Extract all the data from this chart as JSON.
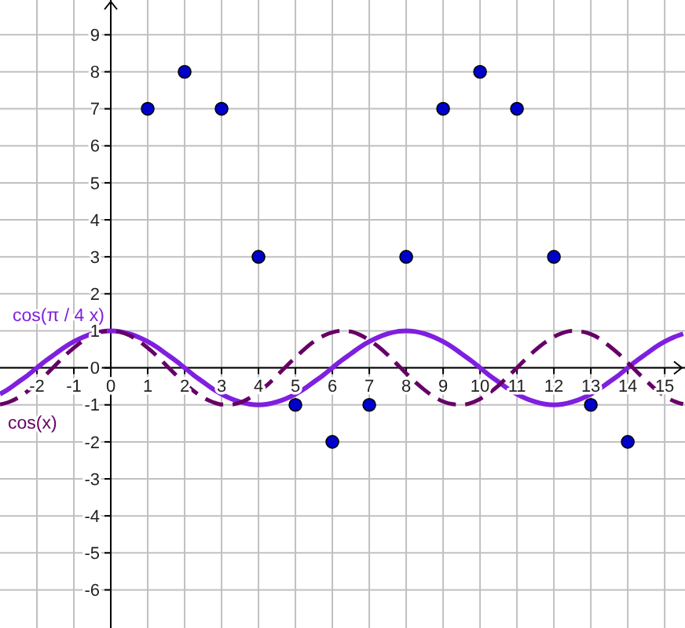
{
  "chart_data": {
    "type": "scatter",
    "xlim": [
      -3,
      15.55
    ],
    "ylim": [
      -7.03,
      9.94
    ],
    "xticks": [
      -2,
      -1,
      0,
      1,
      2,
      3,
      4,
      5,
      6,
      7,
      8,
      9,
      10,
      11,
      12,
      13,
      14,
      15
    ],
    "yticks": [
      -6,
      -5,
      -4,
      -3,
      -2,
      -1,
      0,
      1,
      2,
      3,
      4,
      5,
      6,
      7,
      8,
      9
    ],
    "grid": true,
    "series": [
      {
        "color": "#0000cc",
        "marker": "circle",
        "x": [
          1,
          2,
          3,
          4,
          5,
          6,
          7,
          8,
          9,
          10,
          11,
          12,
          13,
          14
        ],
        "values": [
          7,
          8,
          7,
          3,
          -1,
          -2,
          -1,
          3,
          7,
          8,
          7,
          3,
          -1,
          -2
        ]
      },
      {
        "type": "line",
        "name": "cos(π / 4 x)",
        "color": "#7f1fdf",
        "line_style": "solid",
        "x": [
          -3,
          -2.75,
          -2.5,
          -2.25,
          -2,
          -1.75,
          -1.5,
          -1.25,
          -1,
          -0.75,
          -0.5,
          -0.25,
          0,
          0.25,
          0.5,
          0.75,
          1,
          1.25,
          1.5,
          1.75,
          2,
          2.25,
          2.5,
          2.75,
          3,
          3.25,
          3.5,
          3.75,
          4,
          4.25,
          4.5,
          4.75,
          5,
          5.25,
          5.5,
          5.75,
          6,
          6.25,
          6.5,
          6.75,
          7,
          7.25,
          7.5,
          7.75,
          8,
          8.25,
          8.5,
          8.75,
          9,
          9.25,
          9.5,
          9.75,
          10,
          10.25,
          10.5,
          10.75,
          11,
          11.25,
          11.5,
          11.75,
          12,
          12.25,
          12.5,
          12.75,
          13,
          13.25,
          13.5,
          13.75,
          14,
          14.25,
          14.5,
          14.75,
          15,
          15.25,
          15.5
        ],
        "values": [
          -0.71,
          -0.56,
          -0.38,
          -0.2,
          0,
          0.2,
          0.38,
          0.56,
          0.71,
          0.83,
          0.92,
          0.98,
          1,
          0.98,
          0.92,
          0.83,
          0.71,
          0.56,
          0.38,
          0.2,
          0,
          -0.2,
          -0.38,
          -0.56,
          -0.71,
          -0.83,
          -0.92,
          -0.98,
          -1,
          -0.98,
          -0.92,
          -0.83,
          -0.71,
          -0.56,
          -0.38,
          -0.2,
          0,
          0.2,
          0.38,
          0.56,
          0.71,
          0.83,
          0.92,
          0.98,
          1,
          0.98,
          0.92,
          0.83,
          0.71,
          0.56,
          0.38,
          0.2,
          0,
          -0.2,
          -0.38,
          -0.56,
          -0.71,
          -0.83,
          -0.92,
          -0.98,
          -1,
          -0.98,
          -0.92,
          -0.83,
          -0.71,
          -0.56,
          -0.38,
          -0.2,
          0,
          0.2,
          0.38,
          0.56,
          0.71,
          0.83,
          0.92
        ]
      },
      {
        "type": "line",
        "name": "cos(x)",
        "color": "#660066",
        "line_style": "dashed",
        "x": [
          -3,
          -2.75,
          -2.5,
          -2.25,
          -2,
          -1.75,
          -1.5,
          -1.25,
          -1,
          -0.75,
          -0.5,
          -0.25,
          0,
          0.25,
          0.5,
          0.75,
          1,
          1.25,
          1.5,
          1.75,
          2,
          2.25,
          2.5,
          2.75,
          3,
          3.25,
          3.5,
          3.75,
          4,
          4.25,
          4.5,
          4.75,
          5,
          5.25,
          5.5,
          5.75,
          6,
          6.25,
          6.5,
          6.75,
          7,
          7.25,
          7.5,
          7.75,
          8,
          8.25,
          8.5,
          8.75,
          9,
          9.25,
          9.5,
          9.75,
          10,
          10.25,
          10.5,
          10.75,
          11,
          11.25,
          11.5,
          11.75,
          12,
          12.25,
          12.5,
          12.75,
          13,
          13.25,
          13.5,
          13.75,
          14,
          14.25,
          14.5,
          14.75,
          15,
          15.25,
          15.5
        ],
        "values": [
          -0.99,
          -0.92,
          -0.8,
          -0.63,
          -0.42,
          -0.18,
          0.07,
          0.32,
          0.54,
          0.73,
          0.88,
          0.97,
          1,
          0.97,
          0.88,
          0.73,
          0.54,
          0.32,
          0.07,
          -0.18,
          -0.42,
          -0.63,
          -0.8,
          -0.92,
          -0.99,
          -0.99,
          -0.94,
          -0.82,
          -0.65,
          -0.45,
          -0.21,
          0.04,
          0.28,
          0.51,
          0.71,
          0.86,
          0.96,
          1,
          0.98,
          0.89,
          0.75,
          0.57,
          0.35,
          0.1,
          -0.15,
          -0.39,
          -0.6,
          -0.78,
          -0.91,
          -0.98,
          -1,
          -0.95,
          -0.84,
          -0.68,
          -0.48,
          -0.24,
          0,
          0.25,
          0.48,
          0.68,
          0.84,
          0.95,
          1,
          0.98,
          0.91,
          0.78,
          0.59,
          0.38,
          0.14,
          -0.11,
          -0.35,
          -0.58,
          -0.76,
          -0.9,
          -0.98
        ]
      }
    ]
  }
}
